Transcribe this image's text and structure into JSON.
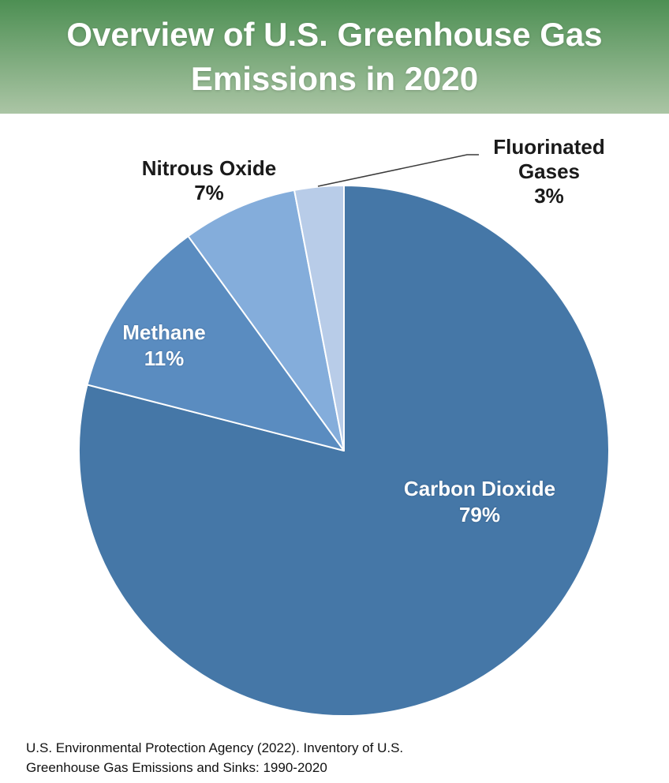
{
  "header": {
    "title": "Overview of U.S. Greenhouse Gas Emissions in 2020"
  },
  "source": {
    "line1": "U.S. Environmental Protection Agency (2022). Inventory of U.S.",
    "line2": "Greenhouse Gas Emissions and Sinks: 1990-2020"
  },
  "chart_data": {
    "type": "pie",
    "title": "Overview of U.S. Greenhouse Gas Emissions in 2020",
    "units": "percent",
    "start_angle_deg": 0,
    "direction": "clockwise",
    "legend_position": "none",
    "slices": [
      {
        "label": "Carbon Dioxide",
        "value": 79,
        "pct_label": "79%",
        "color": "#4577A7",
        "label_color": "#ffffff",
        "label_placement": "inside"
      },
      {
        "label": "Methane",
        "value": 11,
        "pct_label": "11%",
        "color": "#5A8CC0",
        "label_color": "#ffffff",
        "label_placement": "inside"
      },
      {
        "label": "Nitrous Oxide",
        "value": 7,
        "pct_label": "7%",
        "color": "#84ADDB",
        "label_color": "#1a1a1a",
        "label_placement": "outside"
      },
      {
        "label": "Fluorinated Gases",
        "value": 3,
        "pct_label": "3%",
        "color": "#B8CCE8",
        "label_color": "#1a1a1a",
        "label_placement": "outside",
        "leader_line": true
      }
    ],
    "colors": {
      "banner_top": "#4d8f53",
      "banner_bottom": "#abc5a5",
      "slice_border": "#ffffff",
      "leader_line": "#3a3a3a"
    },
    "source": "U.S. Environmental Protection Agency (2022). Inventory of U.S. Greenhouse Gas Emissions and Sinks: 1990-2020"
  }
}
